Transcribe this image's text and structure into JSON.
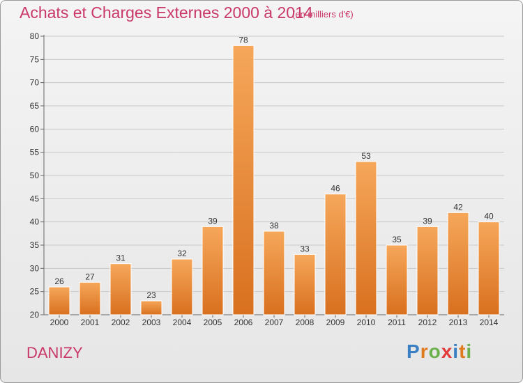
{
  "title": "Achats et Charges Externes 2000 à 2014",
  "subtitle": "(en milliers d'€)",
  "commune": "DANIZY",
  "brand": {
    "letters": [
      "P",
      "r",
      "o",
      "x",
      "i",
      "t",
      "i"
    ],
    "colors": [
      "#3a7fc4",
      "#e07a1f",
      "#6ab04c",
      "#e23b3b",
      "#3a7fc4",
      "#e07a1f",
      "#6ab04c"
    ]
  },
  "colors": {
    "title": "#c9386a",
    "bar_light": "#f6a75a",
    "bar_dark": "#d8701f",
    "grid": "#c8c8c8"
  },
  "chart_data": {
    "type": "bar",
    "categories": [
      "2000",
      "2001",
      "2002",
      "2003",
      "2004",
      "2005",
      "2006",
      "2007",
      "2008",
      "2009",
      "2010",
      "2011",
      "2012",
      "2013",
      "2014"
    ],
    "values": [
      26,
      27,
      31,
      23,
      32,
      39,
      78,
      38,
      33,
      46,
      53,
      35,
      39,
      42,
      40
    ],
    "ylim": [
      20,
      80
    ],
    "yticks": [
      20,
      25,
      30,
      35,
      40,
      45,
      50,
      55,
      60,
      65,
      70,
      75,
      80
    ],
    "grid": true,
    "xlabel": "",
    "ylabel": ""
  }
}
